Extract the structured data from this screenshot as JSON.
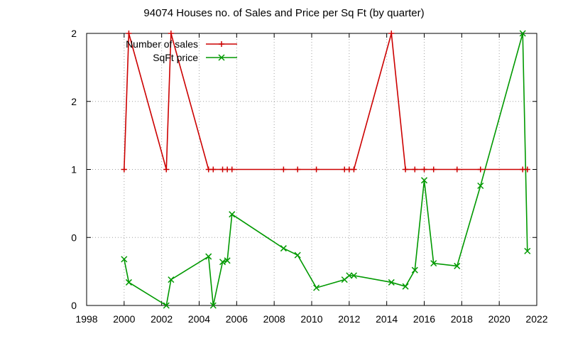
{
  "chart_data": {
    "type": "line",
    "title": "94074 Houses no. of Sales and Price per Sq Ft (by quarter)",
    "xlabel": "",
    "ylabel": "",
    "xlim": [
      1998,
      2022
    ],
    "ylim": [
      0,
      2
    ],
    "x_ticks": [
      "1998",
      "2000",
      "2002",
      "2004",
      "2006",
      "2008",
      "2010",
      "2012",
      "2014",
      "2016",
      "2018",
      "2020",
      "2022"
    ],
    "y_ticks": [
      "0",
      "0",
      "1",
      "2",
      "2"
    ],
    "grid": true,
    "legend_position": "top-left",
    "series": [
      {
        "name": "Number of sales",
        "color": "#cc0000",
        "marker": "plus",
        "x": [
          2000.0,
          2000.25,
          2002.25,
          2002.5,
          2004.5,
          2004.75,
          2005.25,
          2005.5,
          2005.75,
          2008.5,
          2009.25,
          2010.25,
          2011.75,
          2012.0,
          2012.25,
          2014.25,
          2015.0,
          2015.5,
          2016.0,
          2016.5,
          2017.75,
          2019.0,
          2021.25,
          2021.5
        ],
        "y": [
          1,
          2,
          1,
          2,
          1,
          1,
          1,
          1,
          1,
          1,
          1,
          1,
          1,
          1,
          1,
          2,
          1,
          1,
          1,
          1,
          1,
          1,
          1,
          1
        ]
      },
      {
        "name": "SqFt price",
        "color": "#009900",
        "marker": "cross",
        "x": [
          2000.0,
          2000.25,
          2002.25,
          2002.5,
          2004.5,
          2004.75,
          2005.25,
          2005.5,
          2005.75,
          2008.5,
          2009.25,
          2010.25,
          2011.75,
          2012.0,
          2012.25,
          2014.25,
          2015.0,
          2015.5,
          2016.0,
          2016.5,
          2017.75,
          2019.0,
          2021.25,
          2021.5
        ],
        "y": [
          0.34,
          0.17,
          0.0,
          0.19,
          0.36,
          0.0,
          0.32,
          0.33,
          0.67,
          0.42,
          0.37,
          0.13,
          0.19,
          0.22,
          0.22,
          0.17,
          0.14,
          0.26,
          0.92,
          0.31,
          0.29,
          0.88,
          2.0,
          0.4
        ]
      }
    ]
  }
}
